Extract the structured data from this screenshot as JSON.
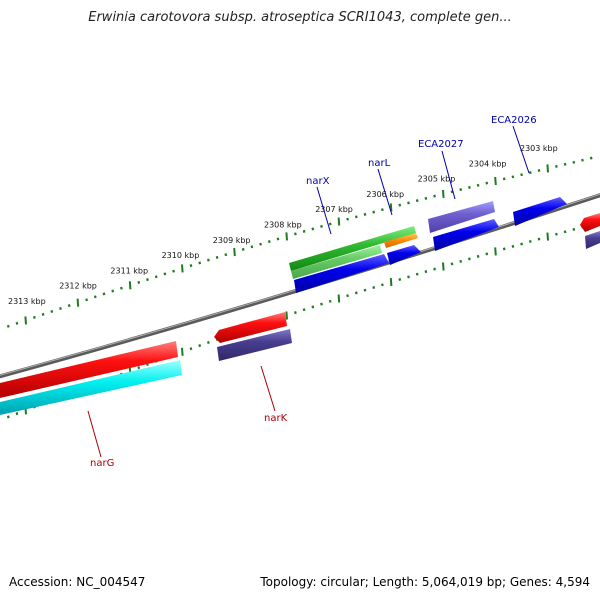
{
  "title": "Erwinia carotovora subsp. atroseptica SCRI1043, complete gen...",
  "footer": {
    "accession": "Accession: NC_004547",
    "stats": "Topology: circular; Length: 5,064,019 bp; Genes: 4,594"
  },
  "colors": {
    "backbone": "#7a7a7a",
    "scale_ticks": "#1e7b1e",
    "forward_label": "#0000aa",
    "reverse_label": "#aa0000"
  },
  "scale_labels": [
    "2313 kbp",
    "2312 kbp",
    "2311 kbp",
    "2310 kbp",
    "2309 kbp",
    "2308 kbp",
    "2307 kbp",
    "2306 kbp",
    "2305 kbp",
    "2304 kbp",
    "2303 kbp"
  ],
  "gene_labels": {
    "narX": "narX",
    "narL": "narL",
    "eca2027": "ECA2027",
    "eca2026": "ECA2026",
    "narK": "narK",
    "narG": "narG"
  },
  "features": [
    {
      "name": "narX",
      "strand": "forward",
      "color": "#33bb33"
    },
    {
      "name": "narL",
      "strand": "forward",
      "color": "#ff8800"
    },
    {
      "name": "ECA2027",
      "strand": "forward",
      "color": "#7766cc"
    },
    {
      "name": "narK",
      "strand": "reverse",
      "color": "#ee1111"
    },
    {
      "name": "narG",
      "strand": "reverse",
      "color": "#ee1111"
    }
  ]
}
